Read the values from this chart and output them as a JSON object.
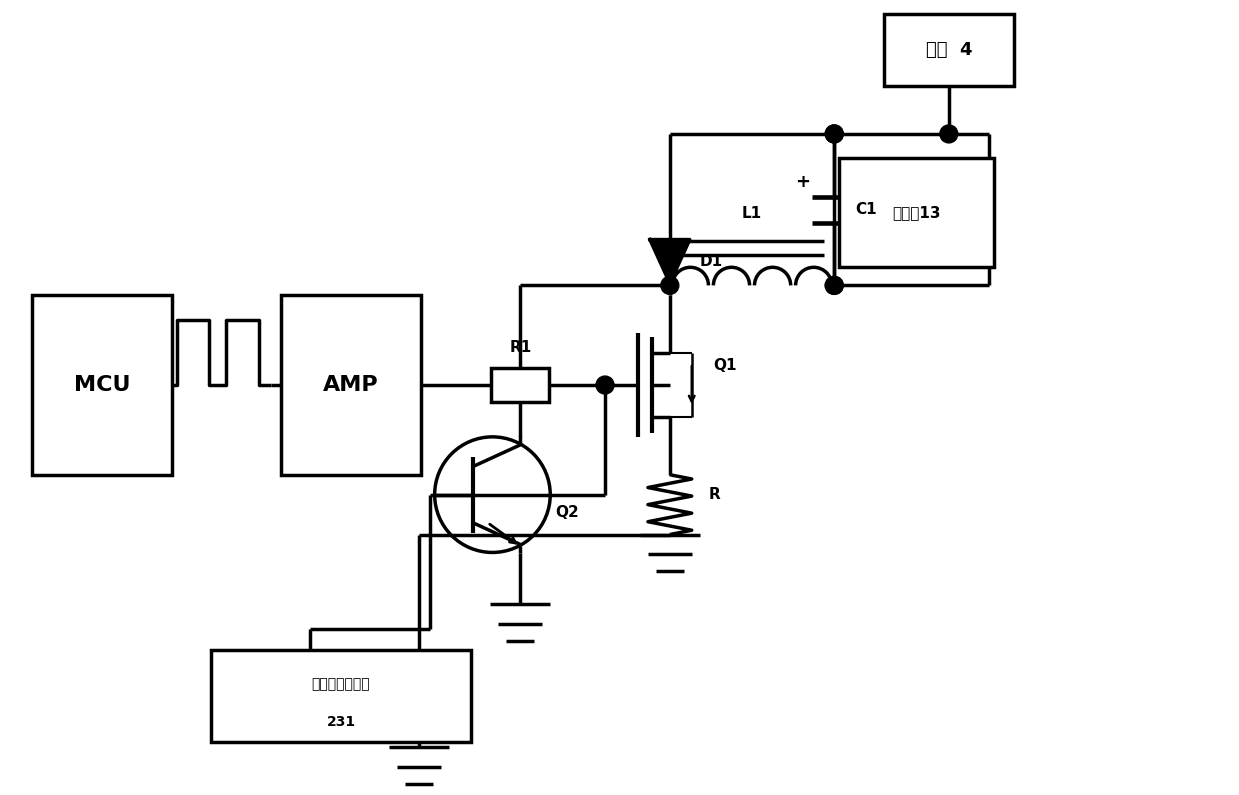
{
  "bg_color": "#ffffff",
  "lc": "#000000",
  "lw": 2.5,
  "fig_w": 12.39,
  "fig_h": 7.95,
  "MCU_label": "MCU",
  "AMP_label": "AMP",
  "power_label": "电源  4",
  "rw_label": "电阵专13",
  "filter_label": "电流平滑滤波器",
  "filter_num": "231",
  "D1_label": "D1",
  "L1_label": "L1",
  "C1_label": "C1",
  "R1_label": "R1",
  "Q1_label": "Q1",
  "Q2_label": "Q2",
  "R_label": "R",
  "plus_label": "+"
}
